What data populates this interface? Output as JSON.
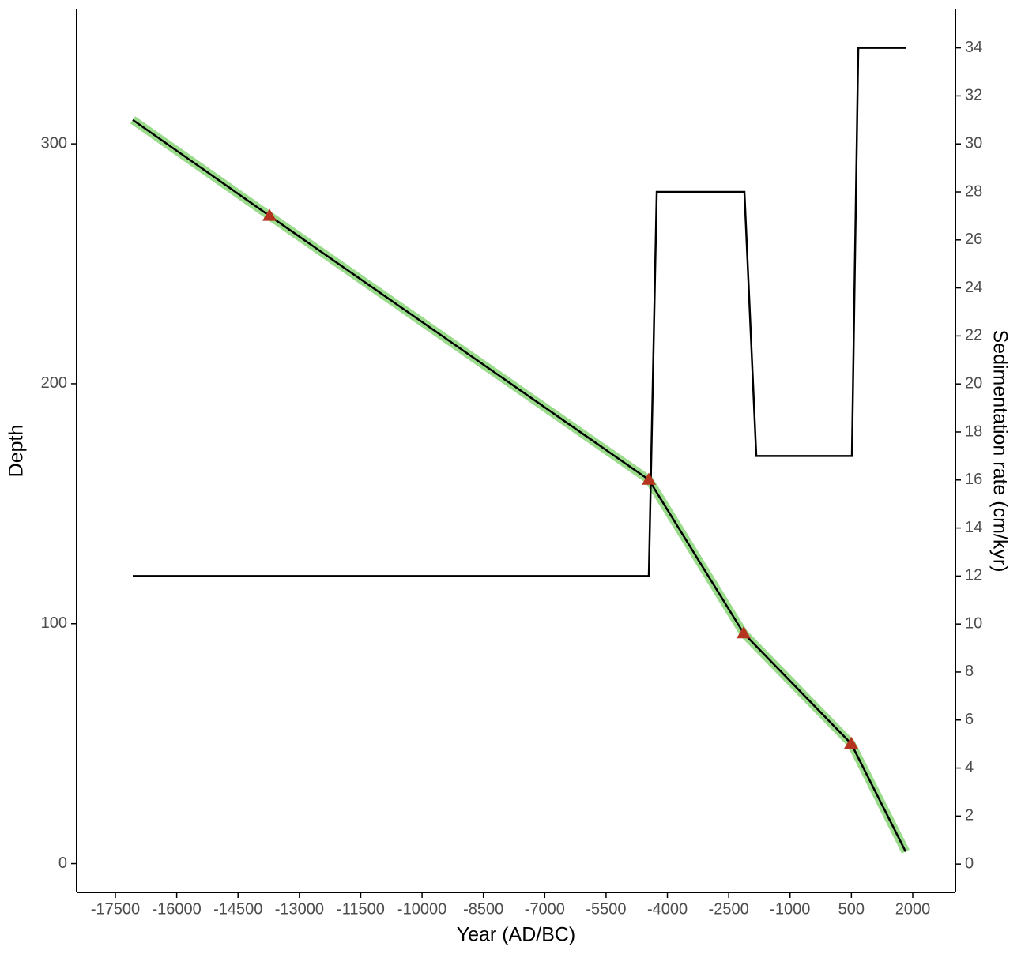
{
  "chart_data": {
    "type": "line",
    "xlabel": "Year (AD/BC)",
    "ylabel": "Depth",
    "y2label": "Sedimentation rate (cm/kyr)",
    "xlim": [
      -18447,
      3044
    ],
    "xticks": [
      -17500,
      -16000,
      -14500,
      -13000,
      -11500,
      -10000,
      -8500,
      -7000,
      -5500,
      -4000,
      -2500,
      -1000,
      500,
      2000
    ],
    "ylim": [
      -12,
      356
    ],
    "yticks": [
      0,
      100,
      200,
      300
    ],
    "y2lim": [
      -1.18,
      35.6
    ],
    "y2ticks": [
      0,
      2,
      4,
      6,
      8,
      10,
      12,
      14,
      16,
      18,
      20,
      22,
      24,
      26,
      28,
      30,
      32,
      34
    ],
    "grid": false,
    "series": [
      {
        "color": "#000000",
        "band_color": "#90d77f",
        "x": [
          -17075,
          -13731,
          -4454,
          -2135,
          494,
          1827
        ],
        "values": [
          310,
          270,
          160,
          96,
          50,
          5
        ]
      },
      {
        "color": "#b5341f",
        "marker": "triangle",
        "x": [
          -13731,
          -4454,
          -2135,
          494
        ],
        "values": [
          270,
          160,
          96,
          50
        ]
      },
      {
        "color": "#000000",
        "axis": "y2",
        "x": [
          -17075,
          -4454,
          -4260,
          -2116,
          -1826,
          513,
          668,
          1827
        ],
        "values": [
          12,
          12,
          28,
          28,
          17,
          17,
          34,
          34
        ]
      }
    ]
  }
}
